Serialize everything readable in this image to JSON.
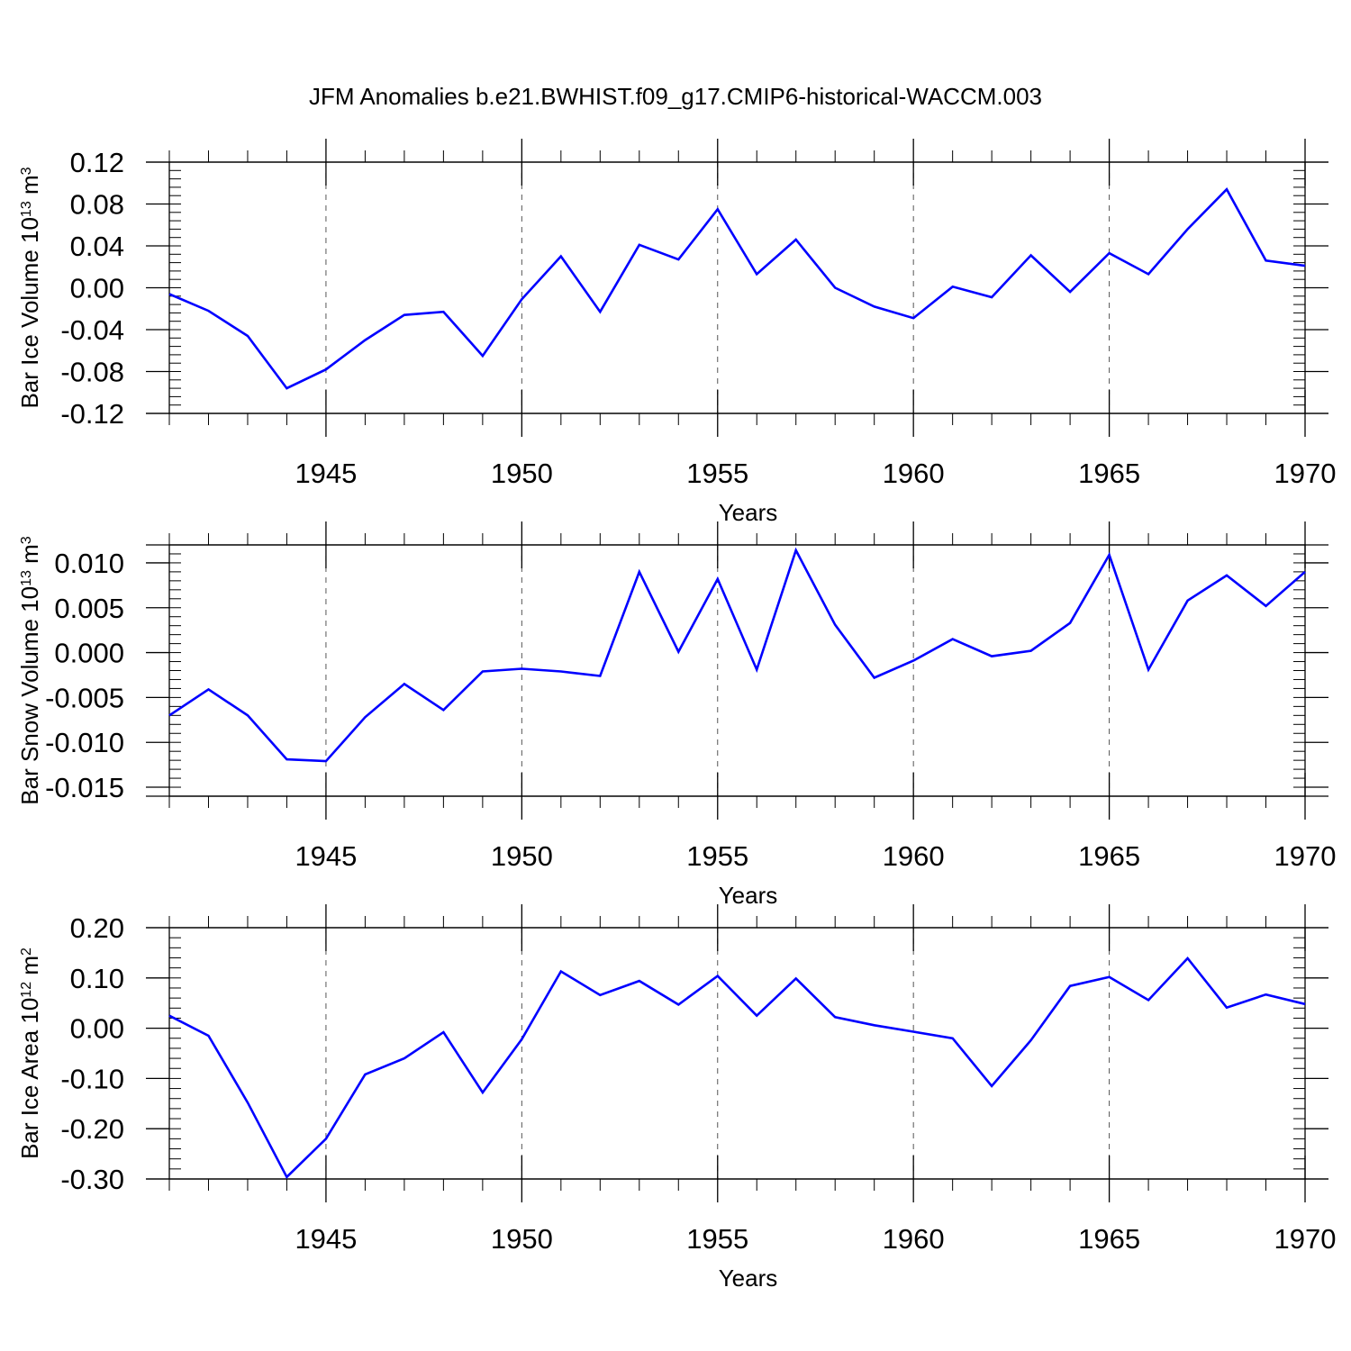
{
  "figure_title": "JFM Anomalies b.e21.BWHIST.f09_g17.CMIP6-historical-WACCM.003",
  "colors": {
    "line": "#0000ff",
    "axis": "#000000",
    "grid": "#555555"
  },
  "chart_data": [
    {
      "type": "line",
      "ylabel": {
        "base": "Bar Ice Volume 10",
        "exp1": "13",
        "mid": " m",
        "exp2": "3"
      },
      "xlabel": "Years",
      "xlim": [
        1941,
        1970
      ],
      "ylim": [
        -0.12,
        0.12
      ],
      "x_ticks": [
        1945,
        1950,
        1955,
        1960,
        1965,
        1970
      ],
      "y_ticks": [
        "-0.12",
        "-0.08",
        "-0.04",
        "0.00",
        "0.04",
        "0.08",
        "0.12"
      ],
      "vertical_gridlines": [
        1945,
        1950,
        1955,
        1960,
        1965
      ],
      "series": [
        {
          "x": [
            1941,
            1942,
            1943,
            1944,
            1945,
            1946,
            1947,
            1948,
            1949,
            1950,
            1951,
            1952,
            1953,
            1954,
            1955,
            1956,
            1957,
            1958,
            1959,
            1960,
            1961,
            1962,
            1963,
            1964,
            1965,
            1966,
            1967,
            1968,
            1969,
            1970
          ],
          "values": [
            -0.006,
            -0.022,
            -0.046,
            -0.096,
            -0.078,
            -0.05,
            -0.026,
            -0.023,
            -0.065,
            -0.011,
            0.03,
            -0.023,
            0.041,
            0.027,
            0.075,
            0.013,
            0.046,
            0.0,
            -0.018,
            -0.029,
            0.001,
            -0.009,
            0.031,
            -0.004,
            0.033,
            0.013,
            0.056,
            0.094,
            0.026,
            0.021
          ]
        }
      ]
    },
    {
      "type": "line",
      "ylabel": {
        "base": "Bar Snow Volume 10",
        "exp1": "13",
        "mid": " m",
        "exp2": "3"
      },
      "xlabel": "Years",
      "xlim": [
        1941,
        1970
      ],
      "ylim": [
        -0.016,
        0.012
      ],
      "x_ticks": [
        1945,
        1950,
        1955,
        1960,
        1965,
        1970
      ],
      "y_ticks": [
        "-0.015",
        "-0.010",
        "-0.005",
        "0.000",
        "0.005",
        "0.010"
      ],
      "vertical_gridlines": [
        1945,
        1950,
        1955,
        1960,
        1965
      ],
      "series": [
        {
          "x": [
            1941,
            1942,
            1943,
            1944,
            1945,
            1946,
            1947,
            1948,
            1949,
            1950,
            1951,
            1952,
            1953,
            1954,
            1955,
            1956,
            1957,
            1958,
            1959,
            1960,
            1961,
            1962,
            1963,
            1964,
            1965,
            1966,
            1967,
            1968,
            1969,
            1970
          ],
          "values": [
            -0.007,
            -0.0041,
            -0.007,
            -0.0119,
            -0.0121,
            -0.0072,
            -0.0035,
            -0.0064,
            -0.0021,
            -0.0018,
            -0.0021,
            -0.0026,
            0.009,
            0.0001,
            0.0082,
            -0.0019,
            0.0114,
            0.0031,
            -0.0028,
            -0.0009,
            0.0015,
            -0.0004,
            0.0002,
            0.0033,
            0.0109,
            -0.0019,
            0.0058,
            0.0086,
            0.0052,
            0.009
          ]
        }
      ]
    },
    {
      "type": "line",
      "ylabel": {
        "base": "Bar Ice Area 10",
        "exp1": "12",
        "mid": " m",
        "exp2": "2"
      },
      "xlabel": "Years",
      "xlim": [
        1941,
        1970
      ],
      "ylim": [
        -0.3,
        0.2
      ],
      "x_ticks": [
        1945,
        1950,
        1955,
        1960,
        1965,
        1970
      ],
      "y_ticks": [
        "-0.30",
        "-0.20",
        "-0.10",
        "0.00",
        "0.10",
        "0.20"
      ],
      "vertical_gridlines": [
        1945,
        1950,
        1955,
        1960,
        1965
      ],
      "series": [
        {
          "x": [
            1941,
            1942,
            1943,
            1944,
            1945,
            1946,
            1947,
            1948,
            1949,
            1950,
            1951,
            1952,
            1953,
            1954,
            1955,
            1956,
            1957,
            1958,
            1959,
            1960,
            1961,
            1962,
            1963,
            1964,
            1965,
            1966,
            1967,
            1968,
            1969,
            1970
          ],
          "values": [
            0.025,
            -0.015,
            -0.148,
            -0.296,
            -0.22,
            -0.092,
            -0.06,
            -0.008,
            -0.128,
            -0.022,
            0.113,
            0.066,
            0.094,
            0.047,
            0.104,
            0.025,
            0.099,
            0.022,
            0.006,
            -0.007,
            -0.02,
            -0.115,
            -0.024,
            0.084,
            0.102,
            0.056,
            0.139,
            0.041,
            0.067,
            0.048
          ]
        }
      ]
    }
  ]
}
